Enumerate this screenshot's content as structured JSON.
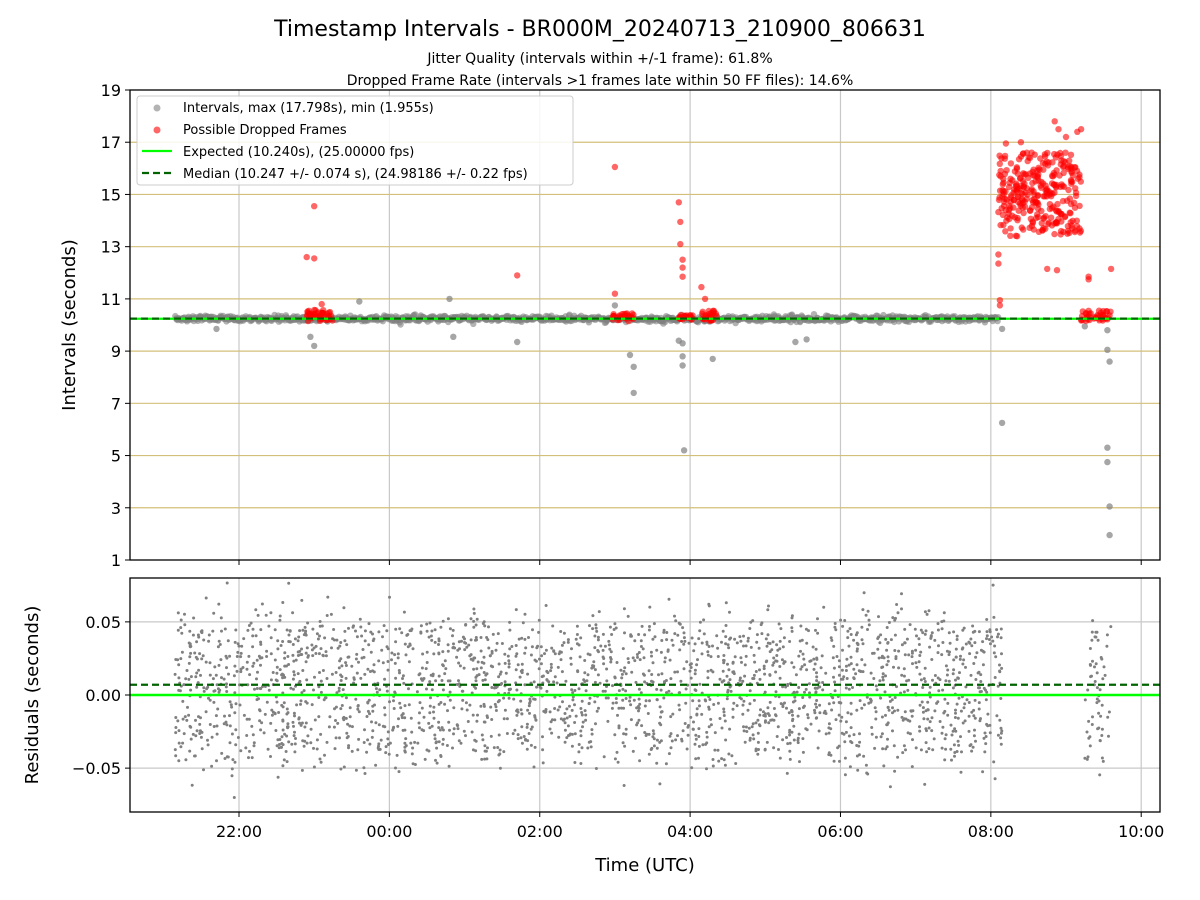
{
  "title": "Timestamp Intervals - BR000M_20240713_210900_806631",
  "subtitle_1": "Jitter Quality (intervals within +/-1 frame): 61.8%",
  "subtitle_2": "Dropped Frame Rate (intervals >1 frames late within 50 FF files): 14.6%",
  "colors": {
    "intervals": "#808080",
    "dropped": "#ff0000",
    "expected": "#00ff00",
    "median": "#006400",
    "hgrid_top": "#d4bf7a",
    "grid": "#c8c8c8"
  },
  "chart_data": [
    {
      "type": "scatter",
      "ylabel": "Intervals (seconds)",
      "xlim_hours": [
        20.55,
        34.25
      ],
      "ylim": [
        1,
        19
      ],
      "y_ticks": [
        "1",
        "3",
        "5",
        "7",
        "9",
        "11",
        "13",
        "15",
        "17",
        "19"
      ],
      "grid": true,
      "legend_position": "upper-left",
      "legend": [
        "Intervals, max (17.798s), min (1.955s)",
        "Possible Dropped Frames",
        "Expected (10.240s), (25.00000 fps)",
        "Median (10.247 +/- 0.074 s), (24.98186 +/- 0.22 fps)"
      ],
      "expected_y": 10.24,
      "median_y": 10.247,
      "interval_cluster": {
        "x_range_hours": [
          21.15,
          32.1
        ],
        "center": 10.24,
        "spread": 0.1
      },
      "interval_outliers": [
        {
          "x": 21.7,
          "y": 9.85
        },
        {
          "x": 22.95,
          "y": 9.55
        },
        {
          "x": 23.0,
          "y": 9.2
        },
        {
          "x": 23.6,
          "y": 10.9
        },
        {
          "x": 24.8,
          "y": 11.0
        },
        {
          "x": 24.85,
          "y": 9.55
        },
        {
          "x": 25.7,
          "y": 9.35
        },
        {
          "x": 27.0,
          "y": 10.75
        },
        {
          "x": 27.2,
          "y": 8.85
        },
        {
          "x": 27.25,
          "y": 8.4
        },
        {
          "x": 27.25,
          "y": 7.4
        },
        {
          "x": 27.85,
          "y": 9.4
        },
        {
          "x": 27.9,
          "y": 9.3
        },
        {
          "x": 27.9,
          "y": 8.8
        },
        {
          "x": 27.9,
          "y": 8.45
        },
        {
          "x": 27.92,
          "y": 5.2
        },
        {
          "x": 28.3,
          "y": 8.7
        },
        {
          "x": 29.4,
          "y": 9.35
        },
        {
          "x": 29.55,
          "y": 9.45
        },
        {
          "x": 32.15,
          "y": 9.85
        },
        {
          "x": 32.15,
          "y": 6.25
        },
        {
          "x": 33.25,
          "y": 9.95
        },
        {
          "x": 33.55,
          "y": 9.8
        },
        {
          "x": 33.55,
          "y": 9.05
        },
        {
          "x": 33.58,
          "y": 8.6
        },
        {
          "x": 33.55,
          "y": 5.3
        },
        {
          "x": 33.55,
          "y": 4.75
        },
        {
          "x": 33.58,
          "y": 3.05
        },
        {
          "x": 33.58,
          "y": 1.955
        }
      ],
      "dropped_clusters": [
        {
          "x_range_hours": [
            22.9,
            23.25
          ],
          "y_range": [
            10.15,
            10.6
          ],
          "count": 45
        },
        {
          "x_range_hours": [
            26.97,
            27.25
          ],
          "y_range": [
            10.15,
            10.45
          ],
          "count": 25
        },
        {
          "x_range_hours": [
            27.85,
            28.05
          ],
          "y_range": [
            10.2,
            10.4
          ],
          "count": 20
        },
        {
          "x_range_hours": [
            28.15,
            28.35
          ],
          "y_range": [
            10.15,
            10.55
          ],
          "count": 25
        },
        {
          "x_range_hours": [
            32.1,
            33.2
          ],
          "y_range": [
            13.4,
            16.6
          ],
          "count": 300
        },
        {
          "x_range_hours": [
            33.2,
            33.6
          ],
          "y_range": [
            10.15,
            10.55
          ],
          "count": 40
        }
      ],
      "dropped_outliers": [
        {
          "x": 22.9,
          "y": 12.6
        },
        {
          "x": 23.0,
          "y": 12.55
        },
        {
          "x": 23.0,
          "y": 14.55
        },
        {
          "x": 23.1,
          "y": 10.8
        },
        {
          "x": 25.7,
          "y": 11.9
        },
        {
          "x": 27.0,
          "y": 16.05
        },
        {
          "x": 27.0,
          "y": 11.2
        },
        {
          "x": 27.85,
          "y": 14.7
        },
        {
          "x": 27.87,
          "y": 13.95
        },
        {
          "x": 27.87,
          "y": 13.1
        },
        {
          "x": 27.9,
          "y": 12.5
        },
        {
          "x": 27.9,
          "y": 12.2
        },
        {
          "x": 27.9,
          "y": 11.85
        },
        {
          "x": 28.15,
          "y": 11.45
        },
        {
          "x": 28.2,
          "y": 11.0
        },
        {
          "x": 32.1,
          "y": 12.7
        },
        {
          "x": 32.1,
          "y": 12.35
        },
        {
          "x": 32.12,
          "y": 10.95
        },
        {
          "x": 32.12,
          "y": 10.75
        },
        {
          "x": 32.2,
          "y": 16.95
        },
        {
          "x": 32.4,
          "y": 17.0
        },
        {
          "x": 32.75,
          "y": 12.15
        },
        {
          "x": 32.85,
          "y": 17.8
        },
        {
          "x": 32.88,
          "y": 12.1
        },
        {
          "x": 32.9,
          "y": 17.5
        },
        {
          "x": 33.0,
          "y": 17.2
        },
        {
          "x": 33.15,
          "y": 17.4
        },
        {
          "x": 33.2,
          "y": 17.5
        },
        {
          "x": 33.3,
          "y": 11.85
        },
        {
          "x": 33.3,
          "y": 11.75
        },
        {
          "x": 33.6,
          "y": 12.15
        }
      ]
    },
    {
      "type": "scatter",
      "ylabel": "Residuals (seconds)",
      "xlabel": "Time (UTC)",
      "xlim_hours": [
        20.55,
        34.25
      ],
      "ylim": [
        -0.08,
        0.08
      ],
      "y_ticks": [
        {
          "v": 0.05,
          "label": "0.05"
        },
        {
          "v": 0.0,
          "label": "0.00"
        },
        {
          "v": -0.05,
          "label": "−0.05"
        }
      ],
      "x_ticks": [
        {
          "h": 22,
          "label": "22:00"
        },
        {
          "h": 24,
          "label": "00:00"
        },
        {
          "h": 26,
          "label": "02:00"
        },
        {
          "h": 28,
          "label": "04:00"
        },
        {
          "h": 30,
          "label": "06:00"
        },
        {
          "h": 32,
          "label": "08:00"
        },
        {
          "h": 34,
          "label": "10:00"
        }
      ],
      "grid": true,
      "expected_y": 0.0,
      "median_y": 0.007,
      "residual_segments": [
        {
          "x_range_hours": [
            21.15,
            32.15
          ],
          "center": 0.005,
          "spread": 0.045,
          "count": 2400
        },
        {
          "x_range_hours": [
            33.25,
            33.6
          ],
          "center": 0.0,
          "spread": 0.05,
          "count": 60
        }
      ]
    }
  ]
}
